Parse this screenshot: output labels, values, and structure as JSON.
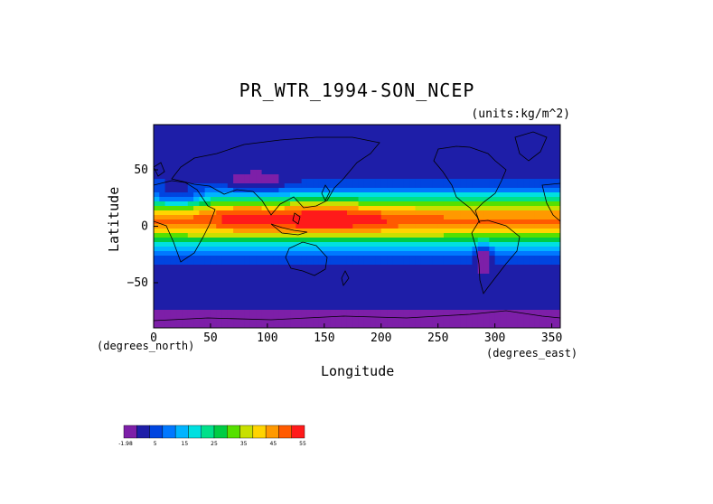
{
  "chart_data": {
    "type": "heatmap",
    "title": "PR_WTR_1994-SON_NCEP",
    "units": "(units:kg/m^2)",
    "xlabel": "Longitude",
    "ylabel": "Latitude",
    "x_unit_note": "(degrees_east)",
    "y_unit_note": "(degrees_north)",
    "xlim": [
      0,
      357.5
    ],
    "ylim": [
      -90,
      90
    ],
    "x_ticks": [
      0,
      50,
      100,
      150,
      200,
      250,
      300,
      350
    ],
    "y_ticks": [
      50,
      0,
      -50
    ],
    "colorbar": {
      "tick_labels": [
        "-1.98",
        "5",
        "15",
        "25",
        "35",
        "45",
        "55"
      ],
      "colors": [
        "#7d1fa8",
        "#1e1ea8",
        "#0045e0",
        "#0078ff",
        "#00b4ff",
        "#00e0e0",
        "#00e08a",
        "#00cc44",
        "#55e000",
        "#c8e000",
        "#ffd400",
        "#ff9900",
        "#ff5a00",
        "#ff1a1a"
      ]
    },
    "features": [
      "global precipitable water field",
      "coastline overlay"
    ]
  }
}
